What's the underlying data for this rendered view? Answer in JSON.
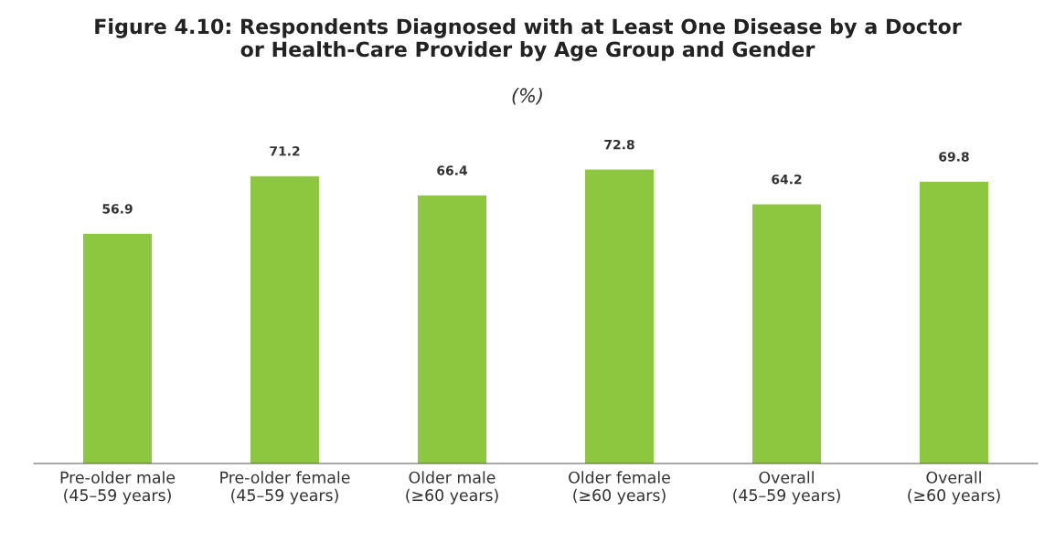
{
  "chart_data": {
    "type": "bar",
    "title": "Figure 4.10: Respondents Diagnosed with at Least One Disease by a Doctor\nor Health-Care Provider by Age Group and Gender",
    "subtitle": "(%)",
    "categories": [
      "Pre-older male\n(45–59 years)",
      "Pre-older female\n(45–59 years)",
      "Older male\n(≥60 years)",
      "Older female\n(≥60 years)",
      "Overall\n(45–59 years)",
      "Overall\n(≥60 years)"
    ],
    "values": [
      56.9,
      71.2,
      66.4,
      72.8,
      64.2,
      69.8
    ],
    "color": "#8dc63f",
    "data_labels": true,
    "grid": false,
    "legend": false
  }
}
